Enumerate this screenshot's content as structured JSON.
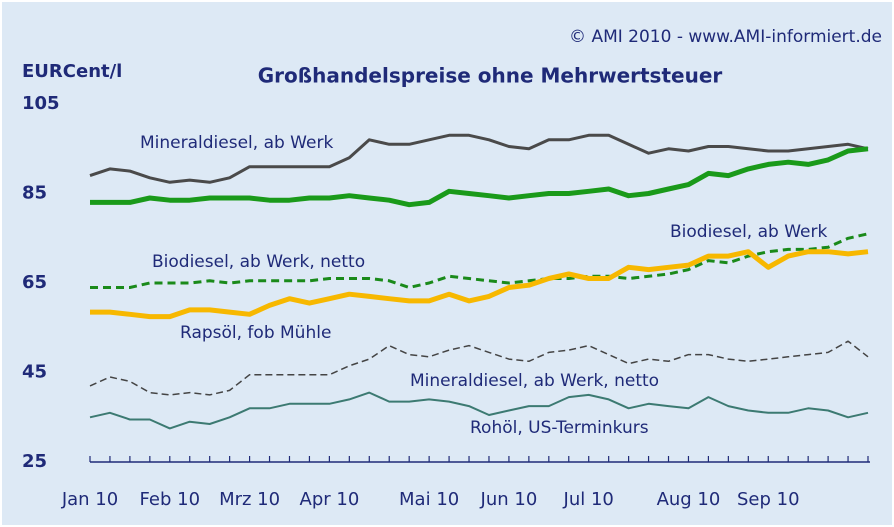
{
  "chart_data": {
    "type": "line",
    "title": "Großhandelspreise ohne Mehrwertsteuer",
    "y_label": "EURCent/l",
    "source": "© AMI 2010 - www.AMI-informiert.de",
    "categories": [
      "Jan 10",
      null,
      null,
      null,
      "Feb 10",
      null,
      null,
      null,
      "Mrz 10",
      null,
      null,
      null,
      "Apr 10",
      null,
      null,
      null,
      null,
      "Mai 10",
      null,
      null,
      null,
      "Jun 10",
      null,
      null,
      null,
      "Jul 10",
      null,
      null,
      null,
      null,
      "Aug 10",
      null,
      null,
      null,
      "Sep 10",
      null,
      null,
      null,
      null,
      null
    ],
    "ylim": [
      25,
      105
    ],
    "yticks": [
      25,
      45,
      65,
      85,
      105
    ],
    "series": [
      {
        "name": "Mineraldiesel, ab Werk",
        "color": "#4a4a4a",
        "width": 3,
        "dash": "none",
        "values": [
          89,
          90.5,
          90,
          88.5,
          87.5,
          88,
          87.5,
          88.5,
          91,
          91,
          91,
          91,
          91,
          93,
          97,
          96,
          96,
          97,
          98,
          98,
          97,
          95.5,
          95,
          97,
          97,
          98,
          98,
          96,
          94,
          95,
          94.5,
          95.5,
          95.5,
          95,
          94.5,
          94.5,
          95,
          95.5,
          96,
          95
        ]
      },
      {
        "name": "Biodiesel, ab Werk",
        "color": "#1a9a1a",
        "width": 5,
        "dash": "none",
        "values": [
          83,
          83,
          83,
          84,
          83.5,
          83.5,
          84,
          84,
          84,
          83.5,
          83.5,
          84,
          84,
          84.5,
          84,
          83.5,
          82.5,
          83,
          85.5,
          85,
          84.5,
          84,
          84.5,
          85,
          85,
          85.5,
          86,
          84.5,
          85,
          86,
          87,
          89.5,
          89,
          90.5,
          91.5,
          92,
          91.5,
          92.5,
          94.5,
          95
        ]
      },
      {
        "name": "Biodiesel, ab Werk, netto",
        "color": "#1a8a1a",
        "width": 3,
        "dash": "8 5",
        "values": [
          64,
          64,
          64,
          65,
          65,
          65,
          65.5,
          65,
          65.5,
          65.5,
          65.5,
          65.5,
          66,
          66,
          66,
          65.5,
          64,
          65,
          66.5,
          66,
          65.5,
          65,
          65.5,
          66,
          66,
          66.5,
          66.5,
          66,
          66.5,
          67,
          68,
          70,
          69.5,
          71,
          72,
          72.5,
          72.5,
          73,
          75,
          76
        ]
      },
      {
        "name": "Rapsöl, fob Mühle",
        "color": "#f7b800",
        "width": 5,
        "dash": "none",
        "values": [
          58.5,
          58.5,
          58,
          57.5,
          57.5,
          59,
          59,
          58.5,
          58,
          60,
          61.5,
          60.5,
          61.5,
          62.5,
          62,
          61.5,
          61,
          61,
          62.5,
          61,
          62,
          64,
          64.5,
          66,
          67,
          66,
          66,
          68.5,
          68,
          68.5,
          69,
          71,
          71,
          72,
          68.5,
          71,
          72,
          72,
          71.5,
          72
        ]
      },
      {
        "name": "Mineraldiesel, ab Werk, netto",
        "color": "#444444",
        "width": 1.5,
        "dash": "7 4",
        "values": [
          42,
          44,
          43,
          40.5,
          40,
          40.5,
          40,
          41,
          44.5,
          44.5,
          44.5,
          44.5,
          44.5,
          46.5,
          48,
          51,
          49,
          48.5,
          50,
          51,
          49.5,
          48,
          47.5,
          49.5,
          50,
          51,
          49,
          47,
          48,
          47.5,
          49,
          49,
          48,
          47.5,
          48,
          48.5,
          49,
          49.5,
          52,
          48.5
        ]
      },
      {
        "name": "Rohöl, US-Terminkurs",
        "color": "#3c7a72",
        "width": 2,
        "dash": "none",
        "values": [
          35,
          36,
          34.5,
          34.5,
          32.5,
          34,
          33.5,
          35,
          37,
          37,
          38,
          38,
          38,
          39,
          40.5,
          38.5,
          38.5,
          39,
          38.5,
          37.5,
          35.5,
          36.5,
          37.5,
          37.5,
          39.5,
          40,
          39,
          37,
          38,
          37.5,
          37,
          39.5,
          37.5,
          36.5,
          36,
          36,
          37,
          36.5,
          35,
          36
        ]
      }
    ]
  }
}
